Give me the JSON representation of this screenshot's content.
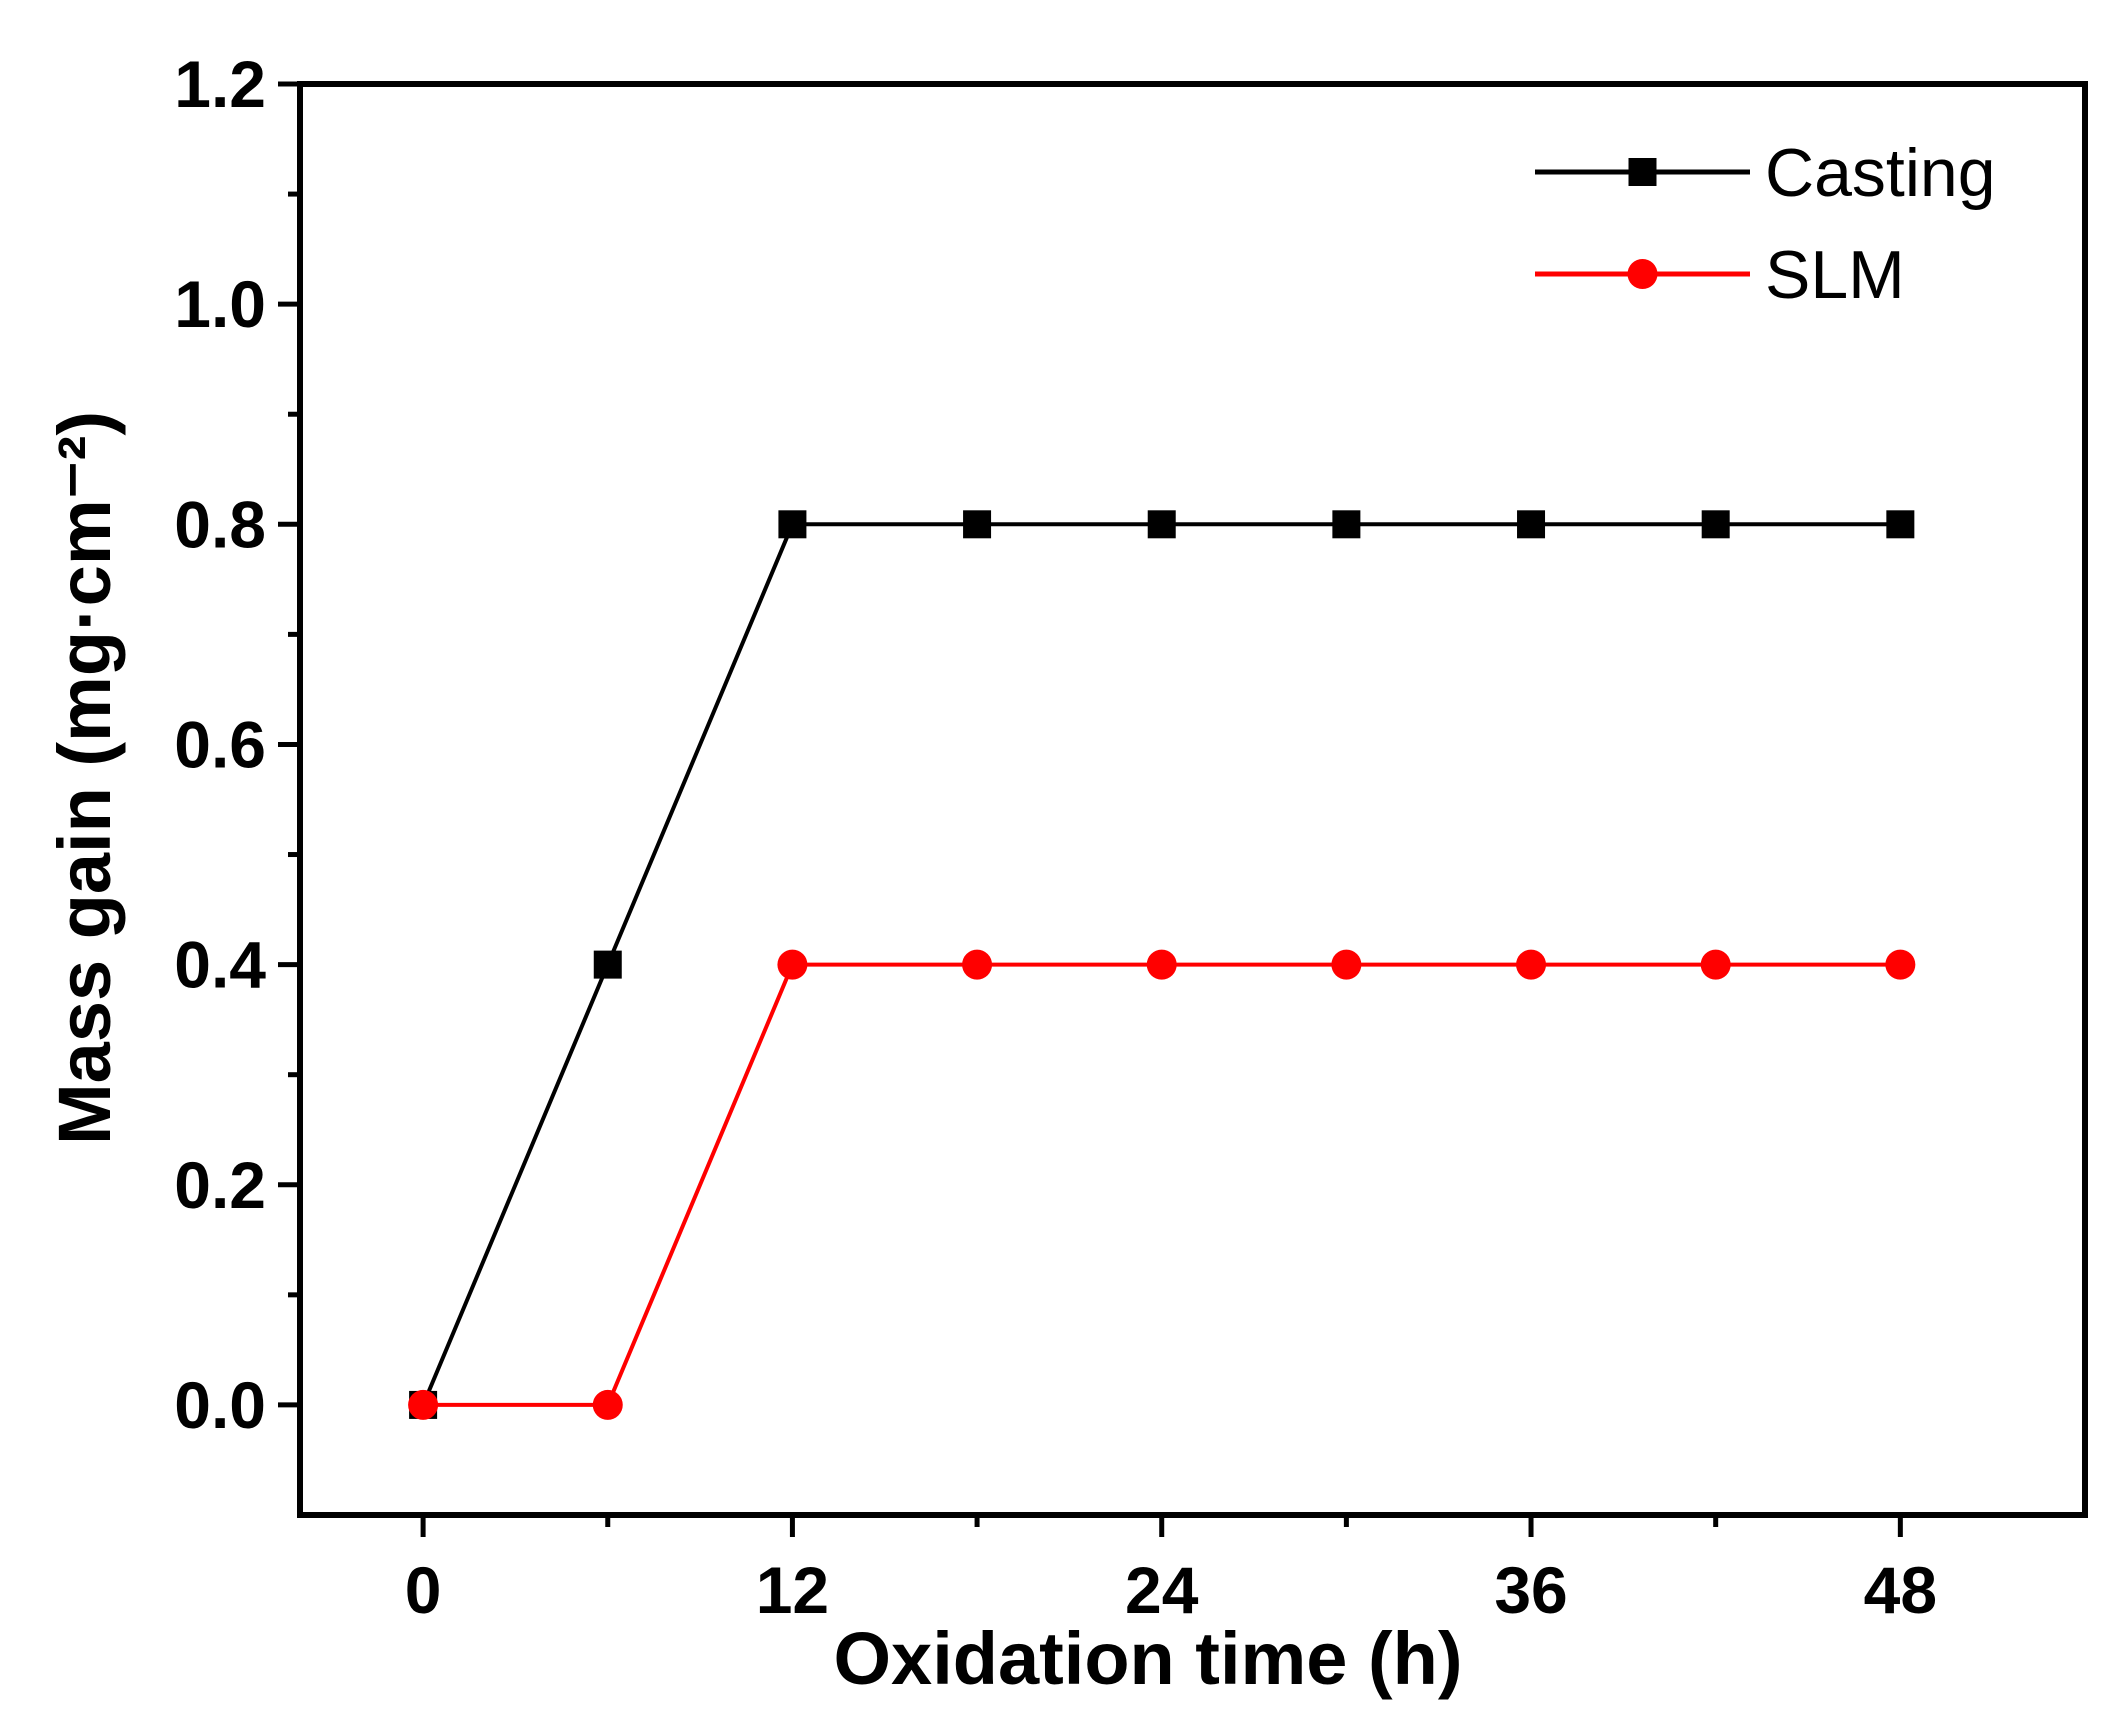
{
  "chart_data": {
    "type": "line",
    "title": "",
    "xlabel": "Oxidation time (h)",
    "ylabel": "Mass gain (mg·cm⁻²)",
    "xlim": [
      -4,
      54
    ],
    "ylim": [
      -0.1,
      1.2
    ],
    "xticks": [
      0,
      12,
      24,
      36,
      48
    ],
    "xtick_labels": [
      "0",
      "12",
      "24",
      "36",
      "48"
    ],
    "xminor": [
      6,
      18,
      30,
      42
    ],
    "yticks": [
      0.0,
      0.2,
      0.4,
      0.6,
      0.8,
      1.0,
      1.2
    ],
    "ytick_labels": [
      "0.0",
      "0.2",
      "0.4",
      "0.6",
      "0.8",
      "1.0",
      "1.2"
    ],
    "yminor": [
      0.1,
      0.3,
      0.5,
      0.7,
      0.9,
      1.1
    ],
    "legend_position": "top-right",
    "grid": false,
    "series": [
      {
        "name": "Casting",
        "color": "#000000",
        "marker": "square",
        "x": [
          0,
          6,
          12,
          18,
          24,
          30,
          36,
          42,
          48
        ],
        "y": [
          0.0,
          0.4,
          0.8,
          0.8,
          0.8,
          0.8,
          0.8,
          0.8,
          0.8
        ]
      },
      {
        "name": "SLM",
        "color": "#ff0000",
        "marker": "circle",
        "x": [
          0,
          6,
          12,
          18,
          24,
          30,
          36,
          42,
          48
        ],
        "y": [
          0.0,
          0.0,
          0.4,
          0.4,
          0.4,
          0.4,
          0.4,
          0.4,
          0.4
        ]
      }
    ]
  }
}
